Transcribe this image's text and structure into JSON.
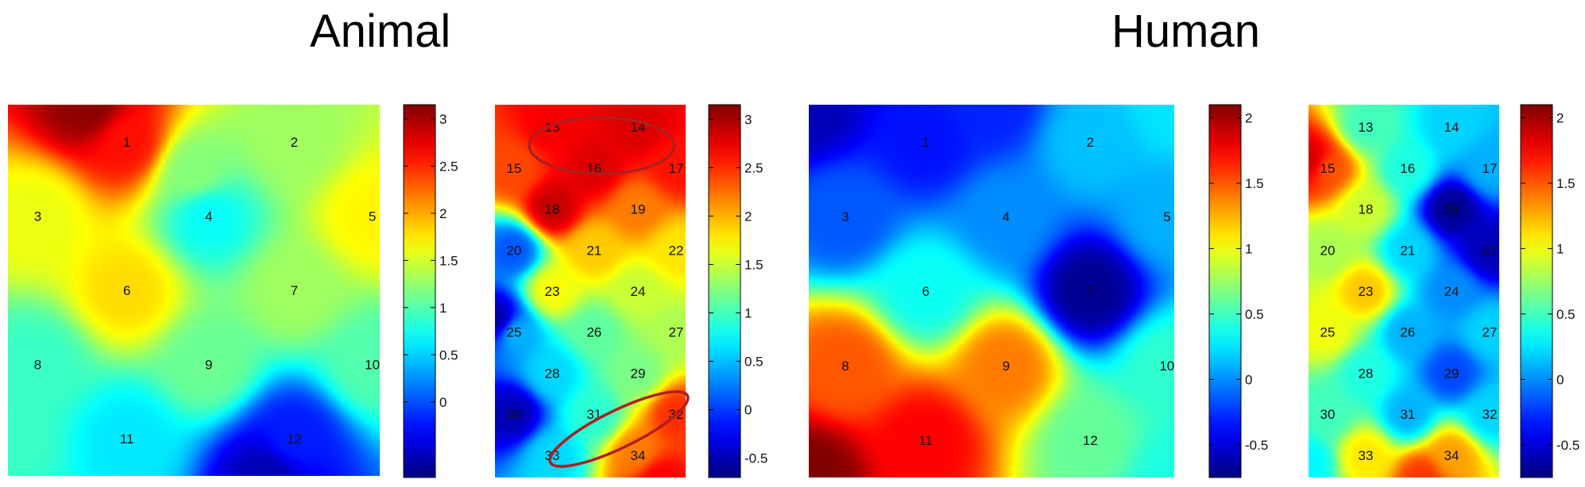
{
  "groups": [
    {
      "title": "Animal"
    },
    {
      "title": "Human"
    }
  ],
  "chart_data": [
    {
      "type": "heatmap",
      "group": "Animal",
      "colormap": "jet",
      "clim": [
        -0.8,
        3.15
      ],
      "colorbar_ticks": [
        "3",
        "2.5",
        "2",
        "1.5",
        "1",
        "0.5",
        "0"
      ],
      "colorbar_tick_values": [
        3,
        2.5,
        2,
        1.5,
        1,
        0.5,
        0
      ],
      "electrodes": [
        {
          "label": "1",
          "c": [
            0.32,
            0.1
          ],
          "v": 2.6
        },
        {
          "label": "2",
          "c": [
            0.77,
            0.1
          ],
          "v": 1.3
        },
        {
          "label": "3",
          "c": [
            0.08,
            0.3
          ],
          "v": 1.6
        },
        {
          "label": "4",
          "c": [
            0.54,
            0.3
          ],
          "v": 0.7
        },
        {
          "label": "5",
          "c": [
            0.98,
            0.3
          ],
          "v": 1.7
        },
        {
          "label": "6",
          "c": [
            0.32,
            0.5
          ],
          "v": 1.8
        },
        {
          "label": "7",
          "c": [
            0.77,
            0.5
          ],
          "v": 1.3
        },
        {
          "label": "8",
          "c": [
            0.08,
            0.7
          ],
          "v": 0.9
        },
        {
          "label": "9",
          "c": [
            0.54,
            0.7
          ],
          "v": 1.1
        },
        {
          "label": "10",
          "c": [
            0.98,
            0.7
          ],
          "v": 1.0
        },
        {
          "label": "11",
          "c": [
            0.32,
            0.9
          ],
          "v": 0.6
        },
        {
          "label": "12",
          "c": [
            0.77,
            0.9
          ],
          "v": -0.2
        }
      ],
      "sources": [
        {
          "c": [
            0.22,
            0.0
          ],
          "v": 3.1
        },
        {
          "c": [
            0.7,
            1.0
          ],
          "v": -0.6
        },
        {
          "c": [
            0.5,
            0.18
          ],
          "v": 1.2
        },
        {
          "c": [
            0.0,
            0.9
          ],
          "v": 0.9
        }
      ]
    },
    {
      "type": "heatmap",
      "group": "Animal",
      "colormap": "jet",
      "clim": [
        -0.7,
        3.15
      ],
      "colorbar_ticks": [
        "3",
        "2.5",
        "2",
        "1.5",
        "1",
        "0.5",
        "0",
        "-0.5"
      ],
      "colorbar_tick_values": [
        3,
        2.5,
        2,
        1.5,
        1,
        0.5,
        0,
        -0.5
      ],
      "electrodes": [
        {
          "label": "13",
          "c": [
            0.3,
            0.06
          ],
          "v": 2.7
        },
        {
          "label": "14",
          "c": [
            0.75,
            0.06
          ],
          "v": 2.8
        },
        {
          "label": "15",
          "c": [
            0.1,
            0.17
          ],
          "v": 2.4
        },
        {
          "label": "16",
          "c": [
            0.52,
            0.17
          ],
          "v": 2.8
        },
        {
          "label": "17",
          "c": [
            0.95,
            0.17
          ],
          "v": 2.6
        },
        {
          "label": "18",
          "c": [
            0.3,
            0.28
          ],
          "v": 2.9
        },
        {
          "label": "19",
          "c": [
            0.75,
            0.28
          ],
          "v": 2.2
        },
        {
          "label": "20",
          "c": [
            0.1,
            0.39
          ],
          "v": 0.1
        },
        {
          "label": "21",
          "c": [
            0.52,
            0.39
          ],
          "v": 1.9
        },
        {
          "label": "22",
          "c": [
            0.95,
            0.39
          ],
          "v": 1.8
        },
        {
          "label": "23",
          "c": [
            0.3,
            0.5
          ],
          "v": 1.7
        },
        {
          "label": "24",
          "c": [
            0.75,
            0.5
          ],
          "v": 1.5
        },
        {
          "label": "25",
          "c": [
            0.1,
            0.61
          ],
          "v": 0.5
        },
        {
          "label": "26",
          "c": [
            0.52,
            0.61
          ],
          "v": 1.1
        },
        {
          "label": "27",
          "c": [
            0.95,
            0.61
          ],
          "v": 1.4
        },
        {
          "label": "28",
          "c": [
            0.3,
            0.72
          ],
          "v": 0.6
        },
        {
          "label": "29",
          "c": [
            0.75,
            0.72
          ],
          "v": 1.2
        },
        {
          "label": "30",
          "c": [
            0.1,
            0.83
          ],
          "v": -0.5
        },
        {
          "label": "31",
          "c": [
            0.52,
            0.83
          ],
          "v": 0.9
        },
        {
          "label": "32",
          "c": [
            0.95,
            0.83
          ],
          "v": 2.5
        },
        {
          "label": "33",
          "c": [
            0.3,
            0.94
          ],
          "v": 0.6
        },
        {
          "label": "34",
          "c": [
            0.75,
            0.94
          ],
          "v": 2.2
        }
      ],
      "sources": [
        {
          "c": [
            0.02,
            0.58
          ],
          "v": -0.6
        },
        {
          "c": [
            0.85,
            1.0
          ],
          "v": 2.7
        }
      ],
      "annotations": [
        {
          "type": "ellipse",
          "color": "#b31d1d",
          "c": [
            0.56,
            0.11
          ],
          "r": [
            0.38,
            0.075
          ],
          "rotate": 0
        },
        {
          "type": "ellipse",
          "color": "#b31d1d",
          "c": [
            0.65,
            0.87
          ],
          "r": [
            0.4,
            0.05
          ],
          "rotate": -26
        }
      ]
    },
    {
      "type": "heatmap",
      "group": "Human",
      "colormap": "jet",
      "clim": [
        -0.75,
        2.1
      ],
      "colorbar_ticks": [
        "2",
        "1.5",
        "1",
        "0.5",
        "0",
        "-0.5"
      ],
      "colorbar_tick_values": [
        2,
        1.5,
        1,
        0.5,
        0,
        -0.5
      ],
      "electrodes": [
        {
          "label": "1",
          "c": [
            0.32,
            0.1
          ],
          "v": -0.35
        },
        {
          "label": "2",
          "c": [
            0.77,
            0.1
          ],
          "v": 0.15
        },
        {
          "label": "3",
          "c": [
            0.1,
            0.3
          ],
          "v": -0.15
        },
        {
          "label": "4",
          "c": [
            0.54,
            0.3
          ],
          "v": 0.0
        },
        {
          "label": "5",
          "c": [
            0.98,
            0.3
          ],
          "v": 0.1
        },
        {
          "label": "6",
          "c": [
            0.32,
            0.5
          ],
          "v": 0.35
        },
        {
          "label": "7",
          "c": [
            0.77,
            0.5
          ],
          "v": -0.7
        },
        {
          "label": "8",
          "c": [
            0.1,
            0.7
          ],
          "v": 1.5
        },
        {
          "label": "9",
          "c": [
            0.54,
            0.7
          ],
          "v": 1.4
        },
        {
          "label": "10",
          "c": [
            0.98,
            0.7
          ],
          "v": 0.45
        },
        {
          "label": "11",
          "c": [
            0.32,
            0.9
          ],
          "v": 1.75
        },
        {
          "label": "12",
          "c": [
            0.77,
            0.9
          ],
          "v": 0.6
        }
      ],
      "sources": [
        {
          "c": [
            0.0,
            1.0
          ],
          "v": 2.1
        },
        {
          "c": [
            0.0,
            0.0
          ],
          "v": -0.6
        },
        {
          "c": [
            0.5,
            0.0
          ],
          "v": -0.3
        },
        {
          "c": [
            1.0,
            0.0
          ],
          "v": 0.25
        },
        {
          "c": [
            1.0,
            1.0
          ],
          "v": 0.4
        }
      ]
    },
    {
      "type": "heatmap",
      "group": "Human",
      "colormap": "jet",
      "clim": [
        -0.75,
        2.1
      ],
      "colorbar_ticks": [
        "2",
        "1.5",
        "1",
        "0.5",
        "0",
        "-0.5"
      ],
      "colorbar_tick_values": [
        2,
        1.5,
        1,
        0.5,
        0,
        -0.5
      ],
      "electrodes": [
        {
          "label": "13",
          "c": [
            0.3,
            0.06
          ],
          "v": 0.5
        },
        {
          "label": "14",
          "c": [
            0.75,
            0.06
          ],
          "v": 0.2
        },
        {
          "label": "15",
          "c": [
            0.1,
            0.17
          ],
          "v": 1.5
        },
        {
          "label": "16",
          "c": [
            0.52,
            0.17
          ],
          "v": 0.4
        },
        {
          "label": "17",
          "c": [
            0.95,
            0.17
          ],
          "v": 0.1
        },
        {
          "label": "18",
          "c": [
            0.3,
            0.28
          ],
          "v": 0.9
        },
        {
          "label": "19",
          "c": [
            0.75,
            0.28
          ],
          "v": -0.7
        },
        {
          "label": "20",
          "c": [
            0.1,
            0.39
          ],
          "v": 0.8
        },
        {
          "label": "21",
          "c": [
            0.52,
            0.39
          ],
          "v": 0.2
        },
        {
          "label": "22",
          "c": [
            0.95,
            0.39
          ],
          "v": -0.6
        },
        {
          "label": "23",
          "c": [
            0.3,
            0.5
          ],
          "v": 1.2
        },
        {
          "label": "24",
          "c": [
            0.75,
            0.5
          ],
          "v": 0.0
        },
        {
          "label": "25",
          "c": [
            0.1,
            0.61
          ],
          "v": 1.0
        },
        {
          "label": "26",
          "c": [
            0.52,
            0.61
          ],
          "v": 0.1
        },
        {
          "label": "27",
          "c": [
            0.95,
            0.61
          ],
          "v": 0.2
        },
        {
          "label": "28",
          "c": [
            0.3,
            0.72
          ],
          "v": 0.4
        },
        {
          "label": "29",
          "c": [
            0.75,
            0.72
          ],
          "v": -0.2
        },
        {
          "label": "30",
          "c": [
            0.1,
            0.83
          ],
          "v": 0.5
        },
        {
          "label": "31",
          "c": [
            0.52,
            0.83
          ],
          "v": 0.1
        },
        {
          "label": "32",
          "c": [
            0.95,
            0.83
          ],
          "v": 0.2
        },
        {
          "label": "33",
          "c": [
            0.3,
            0.94
          ],
          "v": 1.1
        },
        {
          "label": "34",
          "c": [
            0.75,
            0.94
          ],
          "v": 1.3
        }
      ],
      "sources": [
        {
          "c": [
            0.02,
            0.15
          ],
          "v": 1.9
        },
        {
          "c": [
            0.6,
            1.0
          ],
          "v": 1.6
        },
        {
          "c": [
            0.0,
            0.96
          ],
          "v": 0.3
        }
      ]
    }
  ]
}
